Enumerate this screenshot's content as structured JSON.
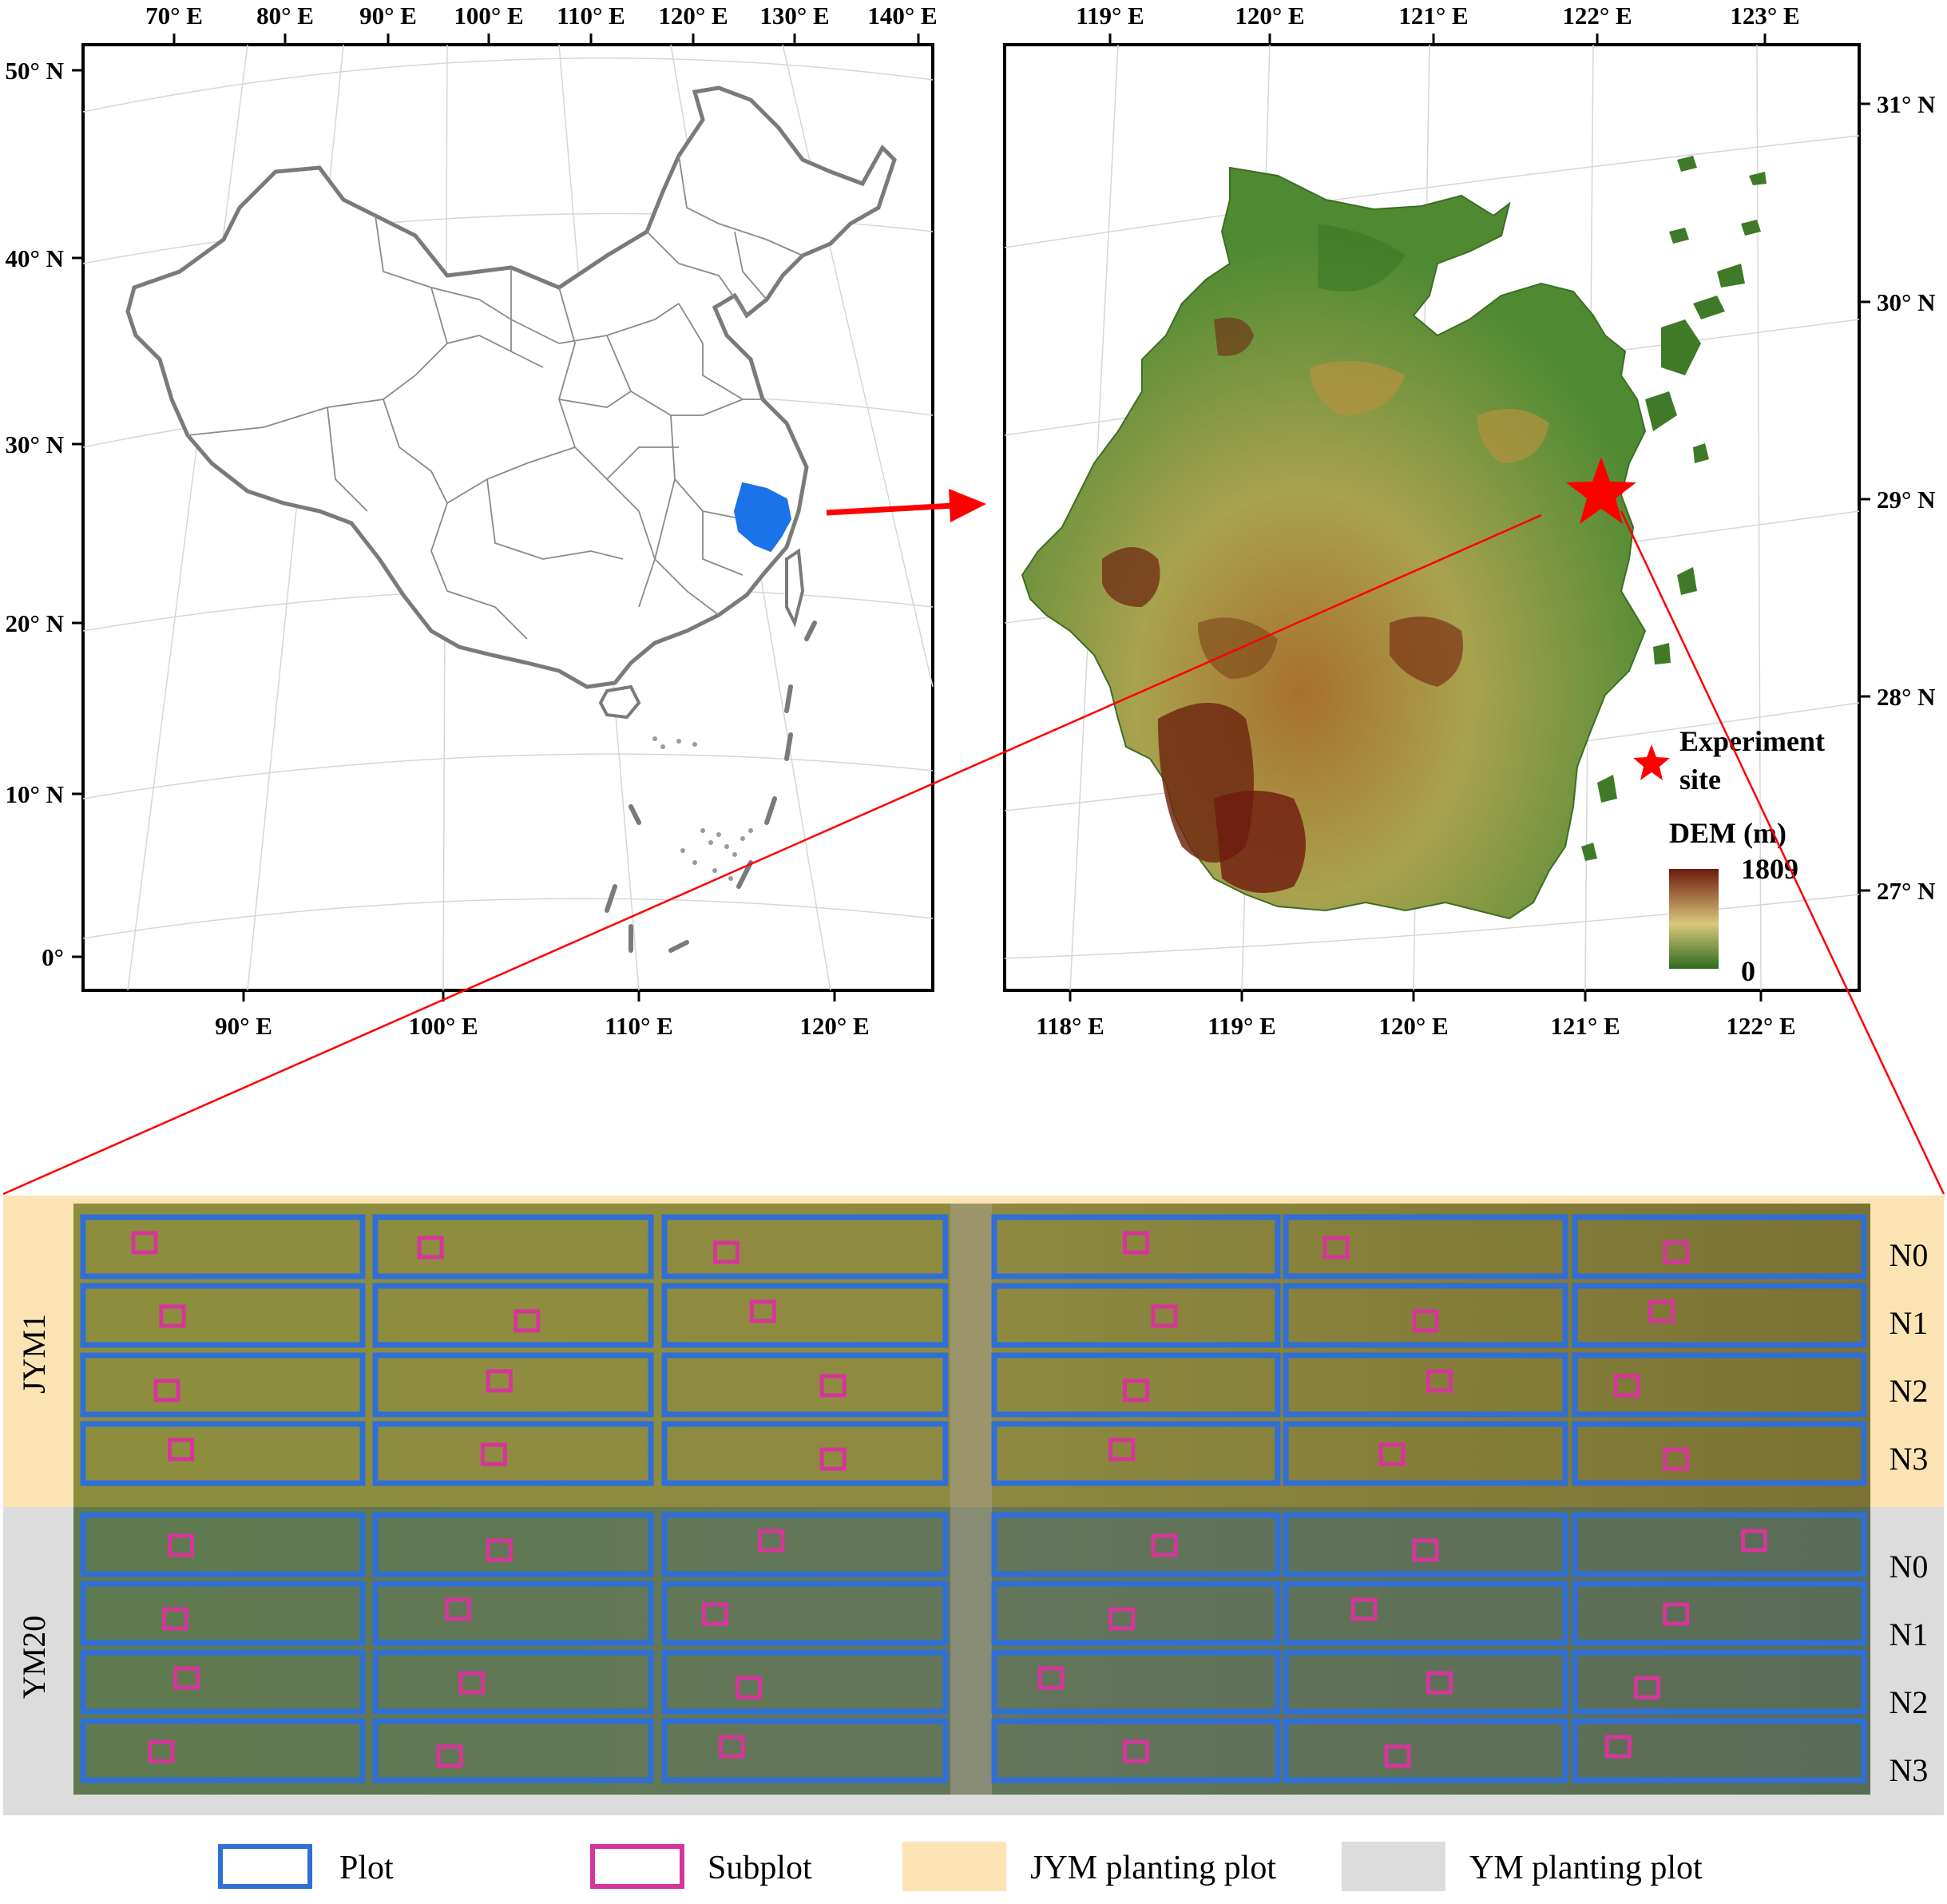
{
  "china_map": {
    "top_ticks": [
      "70° E",
      "80° E",
      "90° E",
      "100° E",
      "110° E",
      "120° E",
      "130° E",
      "140° E"
    ],
    "bottom_ticks": [
      "90° E",
      "100° E",
      "110° E",
      "120° E"
    ],
    "left_ticks": [
      "50° N",
      "40° N",
      "30° N",
      "20° N",
      "10° N",
      "0°"
    ],
    "highlight_color": "#1a73e8"
  },
  "zhejiang_map": {
    "top_ticks": [
      "119° E",
      "120° E",
      "121° E",
      "122° E",
      "123° E"
    ],
    "bottom_ticks": [
      "118° E",
      "119° E",
      "120° E",
      "121° E",
      "122° E"
    ],
    "right_ticks": [
      "31° N",
      "30° N",
      "29° N",
      "28° N",
      "27° N"
    ],
    "site_legend": {
      "line1": "Experiment",
      "line2": "site"
    },
    "dem_legend": {
      "title": "DEM (m)",
      "max": "1809",
      "min": "0"
    },
    "site_color": "#ff0000"
  },
  "field": {
    "groups": [
      {
        "name": "JYM1",
        "rows": [
          "N0",
          "N1",
          "N2",
          "N3"
        ],
        "band_color": "#fbe3b3"
      },
      {
        "name": "YM20",
        "rows": [
          "N0",
          "N1",
          "N2",
          "N3"
        ],
        "band_color": "#dcdcdc"
      }
    ],
    "plot_color": "#2f6fd6",
    "subplot_color": "#d6359a"
  },
  "legend": {
    "plot": "Plot",
    "subplot": "Subplot",
    "jym": "JYM planting plot",
    "ym": "YM planting plot"
  }
}
